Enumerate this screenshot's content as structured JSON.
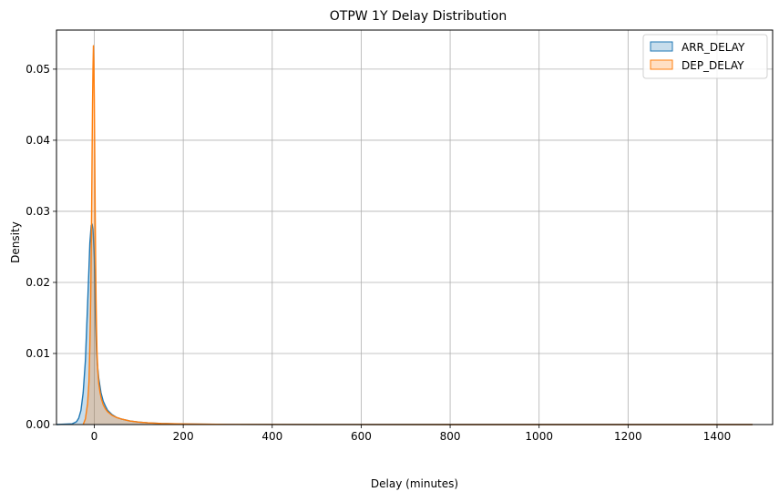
{
  "chart_data": {
    "type": "area",
    "title": "OTPW 1Y Delay Distribution",
    "xlabel": "Delay (minutes)",
    "ylabel": "Density",
    "xlim": [
      -85,
      1525
    ],
    "ylim": [
      0,
      0.0555
    ],
    "xticks": [
      0,
      200,
      400,
      600,
      800,
      1000,
      1200,
      1400
    ],
    "xtick_labels": [
      "0",
      "200",
      "400",
      "600",
      "800",
      "1000",
      "1200",
      "1400"
    ],
    "yticks": [
      0,
      0.01,
      0.02,
      0.03,
      0.04,
      0.05
    ],
    "ytick_labels": [
      "0.00",
      "0.01",
      "0.02",
      "0.03",
      "0.04",
      "0.05"
    ],
    "grid": true,
    "legend_position": "top-right",
    "series": [
      {
        "name": "ARR_DELAY",
        "color": "#1f77b4",
        "x": [
          -85,
          -50,
          -40,
          -35,
          -30,
          -25,
          -20,
          -15,
          -12,
          -10,
          -7,
          -5,
          -3,
          -1,
          0,
          1,
          2,
          3,
          5,
          7,
          10,
          15,
          20,
          25,
          30,
          40,
          50,
          60,
          80,
          100,
          120,
          150,
          200,
          300,
          500,
          800,
          1100,
          1480
        ],
        "y": [
          0,
          0.0001,
          0.0004,
          0.0009,
          0.002,
          0.0045,
          0.009,
          0.017,
          0.022,
          0.0255,
          0.028,
          0.0282,
          0.0275,
          0.025,
          0.0235,
          0.0205,
          0.017,
          0.014,
          0.0105,
          0.0085,
          0.0065,
          0.0045,
          0.0033,
          0.0026,
          0.002,
          0.0014,
          0.001,
          0.0008,
          0.0005,
          0.00035,
          0.00025,
          0.00015,
          7e-05,
          3e-05,
          1e-05,
          0,
          0,
          0
        ]
      },
      {
        "name": "DEP_DELAY",
        "color": "#ff7f0e",
        "x": [
          -25,
          -20,
          -15,
          -12,
          -10,
          -8,
          -6,
          -5,
          -4,
          -3,
          -2,
          -1,
          0,
          1,
          2,
          3,
          4,
          5,
          6,
          8,
          10,
          13,
          16,
          20,
          25,
          30,
          40,
          50,
          60,
          80,
          100,
          120,
          150,
          200,
          300,
          500,
          800,
          1100,
          1480
        ],
        "y": [
          0,
          0.0008,
          0.003,
          0.006,
          0.011,
          0.018,
          0.03,
          0.038,
          0.045,
          0.05,
          0.0533,
          0.051,
          0.046,
          0.038,
          0.03,
          0.023,
          0.0175,
          0.0135,
          0.0105,
          0.0075,
          0.0058,
          0.0045,
          0.0036,
          0.0028,
          0.0022,
          0.0018,
          0.0013,
          0.001,
          0.0008,
          0.0005,
          0.00035,
          0.00025,
          0.00015,
          8e-05,
          3e-05,
          1e-05,
          0,
          0,
          0
        ]
      }
    ]
  }
}
